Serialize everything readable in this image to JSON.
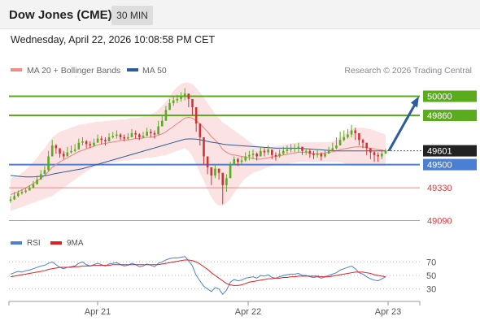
{
  "header": {
    "title": "Dow Jones (CME)",
    "timeframe": "30 MIN"
  },
  "timestamp": "Wednesday, April 22, 2026 10:08:58 PM CET",
  "legend": {
    "bollinger_label": "MA 20 + Bollinger Bands",
    "bollinger_color": "#f28b82",
    "ma50_label": "MA 50",
    "ma50_color": "#2b5c9b"
  },
  "credit": "Research © 2026 Trading Central",
  "colors": {
    "resistance": "#5aab1e",
    "pivot": "#4a7fd4",
    "support": "#f08080",
    "current": "#222222",
    "up_candle": "#5aab1e",
    "down_candle": "#cc3333",
    "arrow": "#2b5c9b",
    "rsi": "#4a7fd4",
    "rsi_ma": "#e02020"
  },
  "chart_data": [
    {
      "type": "candlestick",
      "x_ticks": [
        "Apr 21",
        "Apr 22",
        "Apr 23"
      ],
      "ylim": [
        48980,
        50110
      ],
      "levels": [
        {
          "label": "50000",
          "value": 50000,
          "kind": "resistance"
        },
        {
          "label": "49860",
          "value": 49860,
          "kind": "resistance"
        },
        {
          "label": "49601",
          "value": 49601,
          "kind": "current"
        },
        {
          "label": "49500",
          "value": 49500,
          "kind": "pivot"
        },
        {
          "label": "49330",
          "value": 49330,
          "kind": "support"
        },
        {
          "label": "49090",
          "value": 49090,
          "kind": "support"
        }
      ],
      "close": [
        49245,
        49270,
        49290,
        49300,
        49310,
        49330,
        49355,
        49390,
        49430,
        49460,
        49560,
        49640,
        49620,
        49580,
        49560,
        49590,
        49600,
        49610,
        49660,
        49670,
        49650,
        49640,
        49660,
        49690,
        49680,
        49670,
        49700,
        49710,
        49720,
        49700,
        49690,
        49700,
        49730,
        49720,
        49700,
        49710,
        49740,
        49730,
        49720,
        49780,
        49820,
        49900,
        49950,
        49970,
        49980,
        50000,
        50020,
        49980,
        49920,
        49800,
        49700,
        49560,
        49480,
        49420,
        49470,
        49440,
        49350,
        49400,
        49500,
        49540,
        49520,
        49530,
        49560,
        49570,
        49580,
        49560,
        49600,
        49590,
        49610,
        49570,
        49560,
        49580,
        49600,
        49610,
        49620,
        49620,
        49630,
        49600,
        49600,
        49580,
        49570,
        49580,
        49560,
        49580,
        49600,
        49620,
        49640,
        49680,
        49700,
        49720,
        49750,
        49730,
        49680,
        49660,
        49620,
        49590,
        49570,
        49560,
        49580,
        49601
      ],
      "high": [
        49270,
        49300,
        49310,
        49320,
        49330,
        49350,
        49380,
        49420,
        49460,
        49490,
        49600,
        49680,
        49650,
        49610,
        49600,
        49630,
        49640,
        49650,
        49690,
        49700,
        49680,
        49670,
        49690,
        49720,
        49710,
        49700,
        49730,
        49740,
        49750,
        49730,
        49720,
        49730,
        49760,
        49750,
        49730,
        49740,
        49770,
        49760,
        49750,
        49820,
        49860,
        49930,
        49980,
        50000,
        50010,
        50030,
        50060,
        50010,
        49950,
        49840,
        49720,
        49600,
        49510,
        49450,
        49500,
        49470,
        49380,
        49430,
        49520,
        49560,
        49550,
        49560,
        49590,
        49600,
        49610,
        49590,
        49630,
        49620,
        49640,
        49600,
        49590,
        49610,
        49630,
        49640,
        49650,
        49650,
        49660,
        49630,
        49620,
        49610,
        49600,
        49610,
        49590,
        49610,
        49630,
        49660,
        49700,
        49740,
        49750,
        49760,
        49790,
        49770,
        49720,
        49690,
        49650,
        49620,
        49600,
        49590,
        49610,
        49615
      ],
      "low": [
        49220,
        49240,
        49260,
        49280,
        49290,
        49310,
        49330,
        49360,
        49400,
        49430,
        49450,
        49600,
        49580,
        49550,
        49540,
        49560,
        49580,
        49590,
        49620,
        49640,
        49620,
        49620,
        49630,
        49660,
        49650,
        49640,
        49670,
        49690,
        49690,
        49680,
        49670,
        49680,
        49700,
        49690,
        49680,
        49690,
        49710,
        49700,
        49690,
        49740,
        49780,
        49820,
        49900,
        49930,
        49950,
        49960,
        49970,
        49920,
        49860,
        49740,
        49640,
        49500,
        49430,
        49350,
        49400,
        49390,
        49210,
        49300,
        49460,
        49500,
        49490,
        49500,
        49520,
        49530,
        49540,
        49530,
        49560,
        49560,
        49570,
        49540,
        49530,
        49550,
        49570,
        49580,
        49590,
        49590,
        49590,
        49570,
        49570,
        49550,
        49540,
        49550,
        49530,
        49550,
        49580,
        49600,
        49610,
        49640,
        49670,
        49690,
        49700,
        49680,
        49640,
        49620,
        49570,
        49540,
        49520,
        49520,
        49540,
        49580
      ],
      "ma20": [
        49280,
        49290,
        49300,
        49315,
        49330,
        49345,
        49360,
        49380,
        49400,
        49420,
        49450,
        49480,
        49500,
        49520,
        49535,
        49550,
        49565,
        49580,
        49595,
        49605,
        49615,
        49625,
        49635,
        49645,
        49650,
        49655,
        49660,
        49665,
        49670,
        49675,
        49680,
        49680,
        49685,
        49690,
        49690,
        49695,
        49700,
        49700,
        49705,
        49715,
        49725,
        49740,
        49760,
        49780,
        49800,
        49820,
        49840,
        49845,
        49840,
        49820,
        49800,
        49770,
        49740,
        49705,
        49680,
        49650,
        49610,
        49590,
        49575,
        49570,
        49565,
        49560,
        49555,
        49550,
        49545,
        49540,
        49540,
        49545,
        49550,
        49555,
        49560,
        49565,
        49570,
        49575,
        49580,
        49585,
        49590,
        49590,
        49590,
        49585,
        49580,
        49580,
        49580,
        49585,
        49590,
        49595,
        49600,
        49610,
        49615,
        49620,
        49625,
        49630,
        49630,
        49630,
        49625,
        49620,
        49615,
        49610,
        49605,
        49600
      ],
      "bb_upper": [
        49400,
        49410,
        49420,
        49440,
        49460,
        49490,
        49520,
        49550,
        49590,
        49620,
        49660,
        49700,
        49720,
        49740,
        49750,
        49760,
        49770,
        49780,
        49790,
        49795,
        49800,
        49805,
        49810,
        49815,
        49815,
        49820,
        49820,
        49825,
        49825,
        49830,
        49830,
        49835,
        49840,
        49840,
        49845,
        49850,
        49860,
        49870,
        49880,
        49900,
        49930,
        49960,
        50000,
        50040,
        50070,
        50090,
        50100,
        50100,
        50090,
        50060,
        50030,
        49990,
        49950,
        49910,
        49870,
        49840,
        49810,
        49790,
        49770,
        49750,
        49730,
        49710,
        49690,
        49670,
        49650,
        49640,
        49630,
        49630,
        49630,
        49630,
        49635,
        49640,
        49645,
        49650,
        49655,
        49660,
        49660,
        49665,
        49665,
        49665,
        49665,
        49665,
        49665,
        49665,
        49665,
        49670,
        49680,
        49700,
        49720,
        49740,
        49760,
        49770,
        49770,
        49770,
        49765,
        49760,
        49750,
        49740,
        49730,
        49720
      ],
      "bb_lower": [
        49160,
        49170,
        49180,
        49190,
        49200,
        49210,
        49220,
        49230,
        49240,
        49250,
        49260,
        49270,
        49290,
        49310,
        49330,
        49350,
        49370,
        49390,
        49410,
        49430,
        49450,
        49465,
        49480,
        49490,
        49500,
        49505,
        49510,
        49515,
        49520,
        49525,
        49530,
        49530,
        49535,
        49540,
        49540,
        49545,
        49550,
        49550,
        49555,
        49560,
        49565,
        49570,
        49580,
        49590,
        49600,
        49610,
        49620,
        49600,
        49560,
        49500,
        49440,
        49380,
        49320,
        49260,
        49220,
        49200,
        49200,
        49220,
        49250,
        49290,
        49330,
        49370,
        49400,
        49420,
        49440,
        49450,
        49460,
        49470,
        49480,
        49490,
        49495,
        49500,
        49500,
        49505,
        49510,
        49515,
        49520,
        49520,
        49520,
        49520,
        49520,
        49520,
        49520,
        49520,
        49520,
        49520,
        49520,
        49520,
        49510,
        49500,
        49490,
        49490,
        49490,
        49490,
        49490,
        49490,
        49490,
        49490,
        49490,
        49490
      ],
      "ma50": [
        49420,
        49418,
        49415,
        49412,
        49410,
        49410,
        49410,
        49412,
        49415,
        49418,
        49422,
        49430,
        49435,
        49440,
        49445,
        49450,
        49455,
        49460,
        49465,
        49470,
        49478,
        49486,
        49494,
        49502,
        49510,
        49518,
        49526,
        49534,
        49542,
        49550,
        49558,
        49566,
        49574,
        49582,
        49590,
        49598,
        49606,
        49614,
        49622,
        49630,
        49638,
        49646,
        49654,
        49662,
        49670,
        49678,
        49686,
        49688,
        49688,
        49686,
        49682,
        49676,
        49670,
        49664,
        49660,
        49656,
        49650,
        49646,
        49644,
        49642,
        49640,
        49638,
        49636,
        49634,
        49632,
        49630,
        49628,
        49626,
        49624,
        49622,
        49620,
        49620,
        49620,
        49620,
        49620,
        49620,
        49620,
        49618,
        49616,
        49614,
        49612,
        49610,
        49608,
        49606,
        49604,
        49602,
        49600,
        49600,
        49600,
        49600,
        49600,
        49600,
        49600,
        49600,
        49600,
        49600,
        49600,
        49600,
        49600,
        49600
      ],
      "forecast_arrow": [
        49601,
        50000
      ]
    },
    {
      "type": "line",
      "name": "RSI panel",
      "legend": [
        "RSI",
        "9MA"
      ],
      "y_ticks": [
        70,
        50,
        30
      ],
      "ylim": [
        15,
        85
      ],
      "series": [
        {
          "name": "RSI",
          "values": [
            52,
            54,
            56,
            55,
            57,
            58,
            60,
            62,
            64,
            65,
            68,
            70,
            66,
            62,
            60,
            62,
            63,
            64,
            68,
            70,
            66,
            64,
            66,
            68,
            66,
            64,
            67,
            68,
            69,
            66,
            64,
            65,
            68,
            66,
            63,
            64,
            67,
            65,
            63,
            68,
            70,
            73,
            75,
            76,
            76,
            77,
            78,
            72,
            64,
            50,
            42,
            34,
            30,
            26,
            32,
            30,
            22,
            28,
            40,
            44,
            42,
            43,
            46,
            47,
            48,
            46,
            50,
            49,
            51,
            47,
            46,
            48,
            50,
            51,
            52,
            52,
            53,
            50,
            50,
            48,
            47,
            48,
            46,
            48,
            50,
            52,
            54,
            58,
            60,
            62,
            64,
            60,
            54,
            52,
            48,
            45,
            43,
            42,
            45,
            48
          ]
        },
        {
          "name": "9MA",
          "values": [
            48,
            49,
            50,
            51,
            52,
            53,
            54,
            55,
            56,
            57,
            59,
            60,
            61,
            62,
            62,
            62,
            62,
            63,
            63,
            64,
            64,
            64,
            65,
            65,
            65,
            65,
            65,
            66,
            66,
            66,
            66,
            66,
            66,
            66,
            66,
            66,
            66,
            66,
            66,
            66,
            67,
            68,
            69,
            70,
            71,
            72,
            73,
            73,
            72,
            70,
            67,
            63,
            59,
            54,
            50,
            46,
            42,
            38,
            36,
            35,
            35,
            36,
            38,
            40,
            41,
            42,
            43,
            44,
            45,
            45,
            46,
            46,
            47,
            47,
            48,
            48,
            49,
            49,
            49,
            49,
            49,
            49,
            48,
            48,
            48,
            49,
            50,
            51,
            52,
            53,
            54,
            55,
            55,
            55,
            54,
            53,
            51,
            50,
            49,
            48
          ]
        }
      ]
    }
  ]
}
